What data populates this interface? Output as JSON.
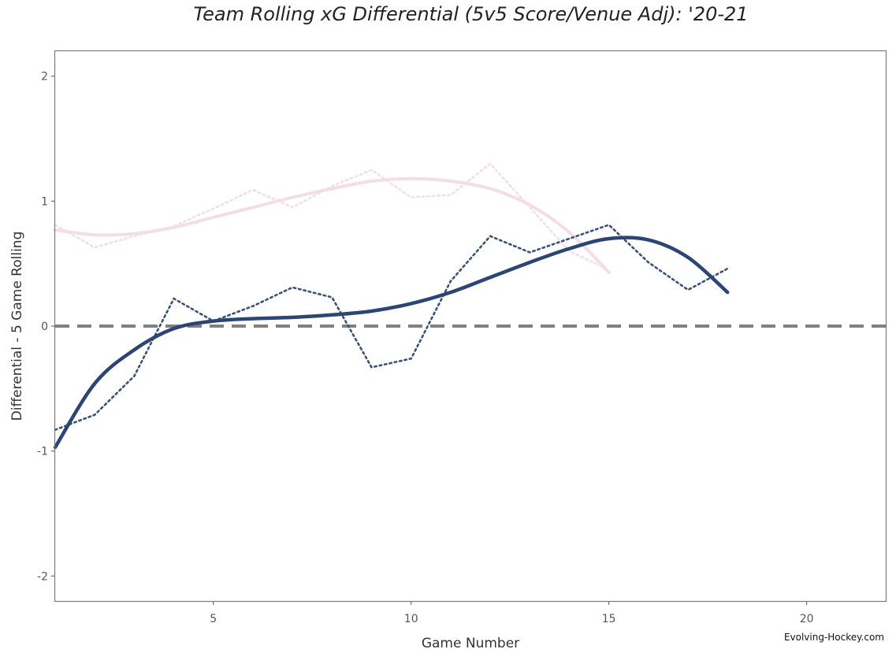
{
  "chart_data": {
    "type": "line",
    "title": "Team Rolling xG Differential (5v5 Score/Venue Adj): '20-21",
    "xlabel": "Game Number",
    "ylabel": "Differential - 5 Game Rolling",
    "xlim": [
      1,
      22
    ],
    "ylim": [
      -2.2,
      2.2
    ],
    "x_ticks": [
      5,
      10,
      15,
      20
    ],
    "y_ticks": [
      2,
      1,
      0,
      -1,
      -2
    ],
    "grid": false,
    "legend": "none",
    "reference_line": {
      "y": 0,
      "style": "dashed",
      "color": "#808080"
    },
    "credit": "Evolving-Hockey.com",
    "series": [
      {
        "style": "dotted",
        "color": "#f3dfe3",
        "x": [
          1,
          2,
          3,
          4,
          5,
          6,
          7,
          8,
          9,
          10,
          11,
          12,
          13,
          14,
          15
        ],
        "values": [
          0.81,
          0.63,
          0.72,
          0.8,
          0.94,
          1.09,
          0.95,
          1.12,
          1.25,
          1.03,
          1.05,
          1.3,
          0.95,
          0.6,
          0.45
        ]
      },
      {
        "style": "smooth",
        "color": "#f4dde3",
        "x": [
          1,
          2,
          3,
          4,
          5,
          6,
          7,
          8,
          9,
          10,
          11,
          12,
          13,
          14,
          15
        ],
        "values": [
          0.77,
          0.73,
          0.74,
          0.79,
          0.87,
          0.95,
          1.03,
          1.1,
          1.16,
          1.18,
          1.16,
          1.1,
          0.97,
          0.75,
          0.43
        ]
      },
      {
        "style": "dotted",
        "color": "#3b5277",
        "x": [
          1,
          2,
          3,
          4,
          5,
          6,
          7,
          8,
          9,
          10,
          11,
          12,
          13,
          14,
          15,
          16,
          17,
          18
        ],
        "values": [
          -0.83,
          -0.71,
          -0.4,
          0.22,
          0.04,
          0.16,
          0.31,
          0.23,
          -0.33,
          -0.26,
          0.36,
          0.72,
          0.59,
          0.7,
          0.81,
          0.51,
          0.29,
          0.46
        ]
      },
      {
        "style": "smooth",
        "color": "#2c4573",
        "x": [
          1,
          2,
          3,
          4,
          5,
          6,
          7,
          8,
          9,
          10,
          11,
          12,
          13,
          14,
          15,
          16,
          17,
          18
        ],
        "values": [
          -0.97,
          -0.46,
          -0.19,
          -0.02,
          0.04,
          0.06,
          0.07,
          0.09,
          0.12,
          0.18,
          0.27,
          0.39,
          0.51,
          0.62,
          0.7,
          0.69,
          0.55,
          0.27
        ]
      }
    ]
  }
}
